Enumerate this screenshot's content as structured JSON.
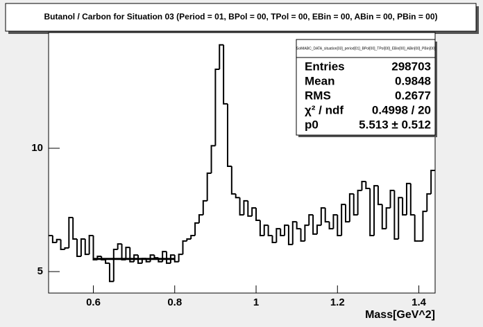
{
  "chart_data": {
    "type": "histogram",
    "title": "Butanol / Carbon for Situation 03 (Period = 01, BPol = 00, TPol = 00, EBin = 00, ABin = 00, PBin = 00)",
    "xlabel": "Mass[GeV^2]",
    "bins": [
      0.49,
      0.5,
      0.51,
      0.52,
      0.53,
      0.54,
      0.55,
      0.56,
      0.57,
      0.58,
      0.59,
      0.6,
      0.61,
      0.62,
      0.63,
      0.64,
      0.65,
      0.66,
      0.67,
      0.68,
      0.69,
      0.7,
      0.71,
      0.72,
      0.73,
      0.74,
      0.75,
      0.76,
      0.77,
      0.78,
      0.79,
      0.8,
      0.81,
      0.82,
      0.83,
      0.84,
      0.85,
      0.86,
      0.87,
      0.88,
      0.89,
      0.9,
      0.91,
      0.92,
      0.93,
      0.94,
      0.95,
      0.96,
      0.97,
      0.98,
      0.99,
      1.0,
      1.01,
      1.02,
      1.03,
      1.04,
      1.05,
      1.06,
      1.07,
      1.08,
      1.09,
      1.1,
      1.11,
      1.12,
      1.13,
      1.14,
      1.15,
      1.16,
      1.17,
      1.18,
      1.19,
      1.2,
      1.21,
      1.22,
      1.23,
      1.24,
      1.25,
      1.26,
      1.27,
      1.28,
      1.29,
      1.3,
      1.31,
      1.32,
      1.33,
      1.34,
      1.35,
      1.36,
      1.37,
      1.38,
      1.39,
      1.4,
      1.41,
      1.42,
      1.43,
      1.44
    ],
    "values": [
      6.46,
      6.18,
      6.3,
      5.9,
      5.96,
      7.19,
      6.32,
      5.62,
      6.32,
      5.7,
      6.46,
      5.48,
      5.62,
      5.48,
      5.34,
      4.6,
      5.9,
      6.12,
      5.48,
      5.98,
      5.4,
      5.67,
      5.34,
      5.53,
      5.4,
      5.67,
      5.56,
      5.4,
      5.81,
      5.34,
      5.67,
      5.4,
      5.7,
      6.24,
      6.32,
      6.46,
      6.97,
      7.3,
      7.87,
      8.99,
      10.1,
      13.2,
      14.19,
      11.8,
      9.27,
      8.15,
      8.0,
      7.3,
      7.87,
      7.25,
      7.58,
      7.08,
      6.46,
      6.88,
      6.46,
      6.18,
      6.74,
      6.46,
      6.88,
      6.1,
      7.02,
      6.74,
      6.24,
      6.88,
      7.3,
      6.52,
      6.88,
      7.58,
      7.02,
      6.74,
      7.3,
      6.46,
      7.72,
      7.02,
      8.15,
      7.3,
      8.29,
      8.65,
      8.37,
      6.46,
      8.48,
      7.72,
      6.74,
      7.58,
      8.29,
      6.32,
      8.0,
      7.3,
      8.57,
      7.3,
      6.24,
      6.24,
      7.44,
      8.15,
      9.1
    ],
    "color": "#000000",
    "fit": {
      "x": [
        0.6,
        0.8
      ],
      "value": 5.513
    },
    "xlim": [
      0.49,
      1.44
    ],
    "xticks": [
      0.6,
      0.8,
      1,
      1.2,
      1.4
    ],
    "ylim": [
      4.13,
      14.69
    ],
    "yticks": [
      5,
      10
    ],
    "stats": {
      "title": "SolMABC_DATA_situation[03]_period[01]_BPol[00]_TPol[00]_EBin[00]_ABin[00]_PBin[00]",
      "rows": [
        [
          "Entries",
          "298703"
        ],
        [
          "Mean",
          "0.9848"
        ],
        [
          "RMS",
          "0.2677"
        ],
        [
          "χ² / ndf",
          "0.4998 / 20"
        ],
        [
          "p0",
          "5.513 ± 0.512"
        ]
      ]
    }
  }
}
